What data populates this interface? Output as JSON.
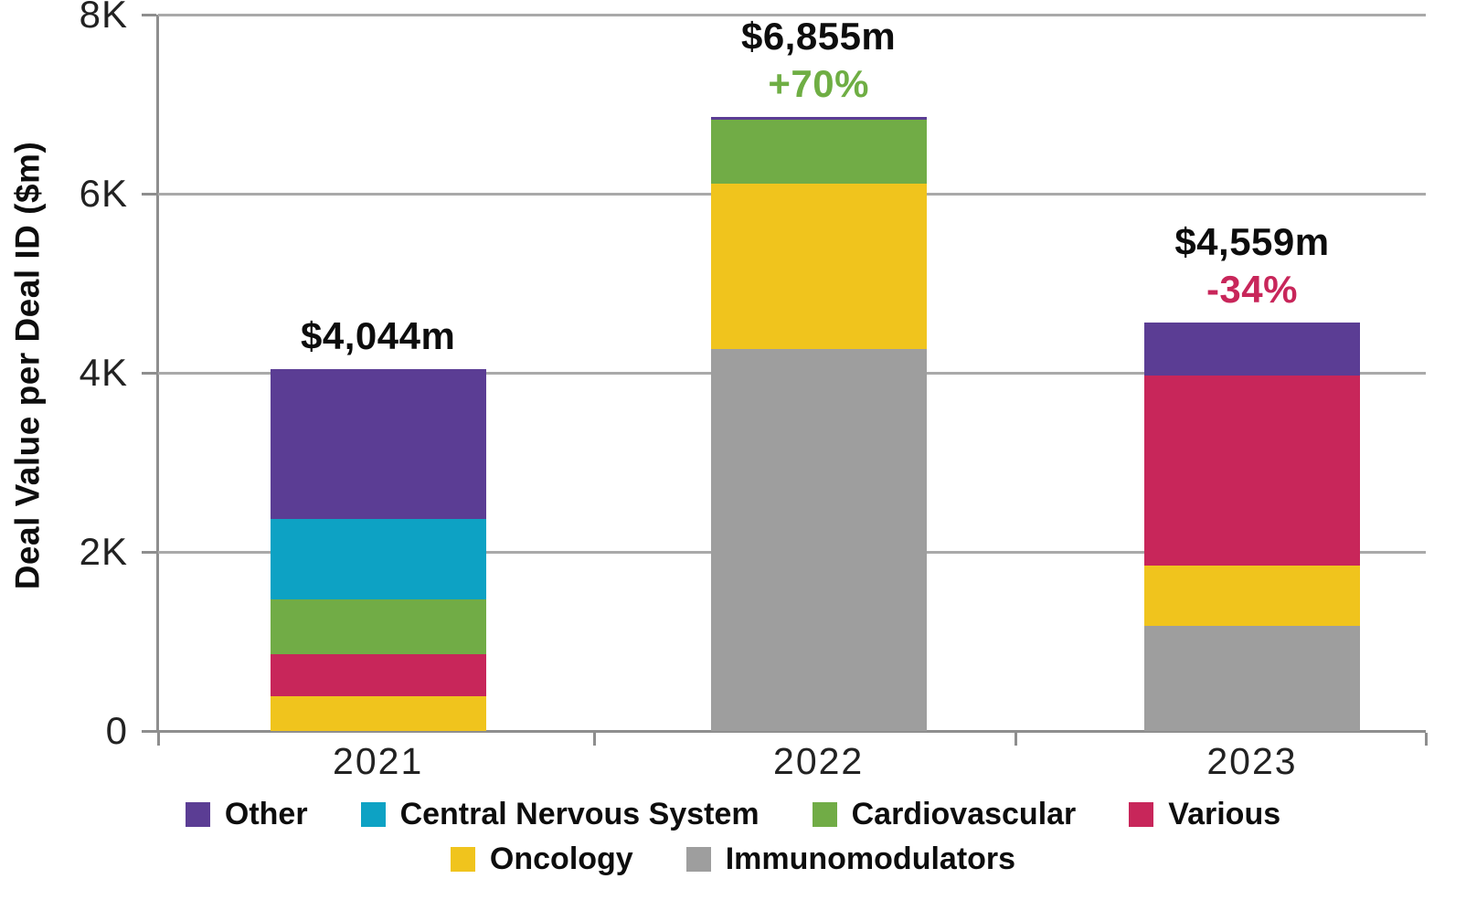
{
  "chart_data": {
    "type": "bar",
    "stacked": true,
    "ylabel": "Deal Value per Deal ID ($m)",
    "ylim": [
      0,
      8000
    ],
    "y_ticks": [
      {
        "label": "8K",
        "value": 8000
      },
      {
        "label": "6K",
        "value": 6000
      },
      {
        "label": "4K",
        "value": 4000
      },
      {
        "label": "2K",
        "value": 2000
      },
      {
        "label": "0",
        "value": 0
      }
    ],
    "grid": true,
    "categories": [
      "2021",
      "2022",
      "2023"
    ],
    "bars": [
      {
        "category": "2021",
        "total": 4044,
        "total_label": "$4,044m",
        "change_label": "",
        "change_color": "",
        "segments_bottom_to_top": [
          {
            "name": "Oncology",
            "value": 385
          },
          {
            "name": "Various",
            "value": 470
          },
          {
            "name": "Cardiovascular",
            "value": 610
          },
          {
            "name": "Central Nervous System",
            "value": 900
          },
          {
            "name": "Other",
            "value": 1679
          }
        ]
      },
      {
        "category": "2022",
        "total": 6855,
        "total_label": "$6,855m",
        "change_label": "+70%",
        "change_color": "#6fae44",
        "segments_bottom_to_top": [
          {
            "name": "Immunomodulators",
            "value": 4270
          },
          {
            "name": "Oncology",
            "value": 1845
          },
          {
            "name": "Cardiovascular",
            "value": 715
          },
          {
            "name": "Other",
            "value": 25
          }
        ]
      },
      {
        "category": "2023",
        "total": 4559,
        "total_label": "$4,559m",
        "change_label": "-34%",
        "change_color": "#c8265a",
        "segments_bottom_to_top": [
          {
            "name": "Immunomodulators",
            "value": 1175
          },
          {
            "name": "Oncology",
            "value": 670
          },
          {
            "name": "Various",
            "value": 2120
          },
          {
            "name": "Other",
            "value": 594
          }
        ]
      }
    ],
    "series_colors": {
      "Other": "#5b3d94",
      "Central Nervous System": "#0da2c4",
      "Cardiovascular": "#71ac46",
      "Various": "#c8265a",
      "Oncology": "#f0c41d",
      "Immunomodulators": "#9e9e9e"
    },
    "legend_position": "bottom",
    "legend_rows": [
      [
        "Other",
        "Central Nervous System",
        "Cardiovascular",
        "Various"
      ],
      [
        "Oncology",
        "Immunomodulators"
      ]
    ]
  }
}
